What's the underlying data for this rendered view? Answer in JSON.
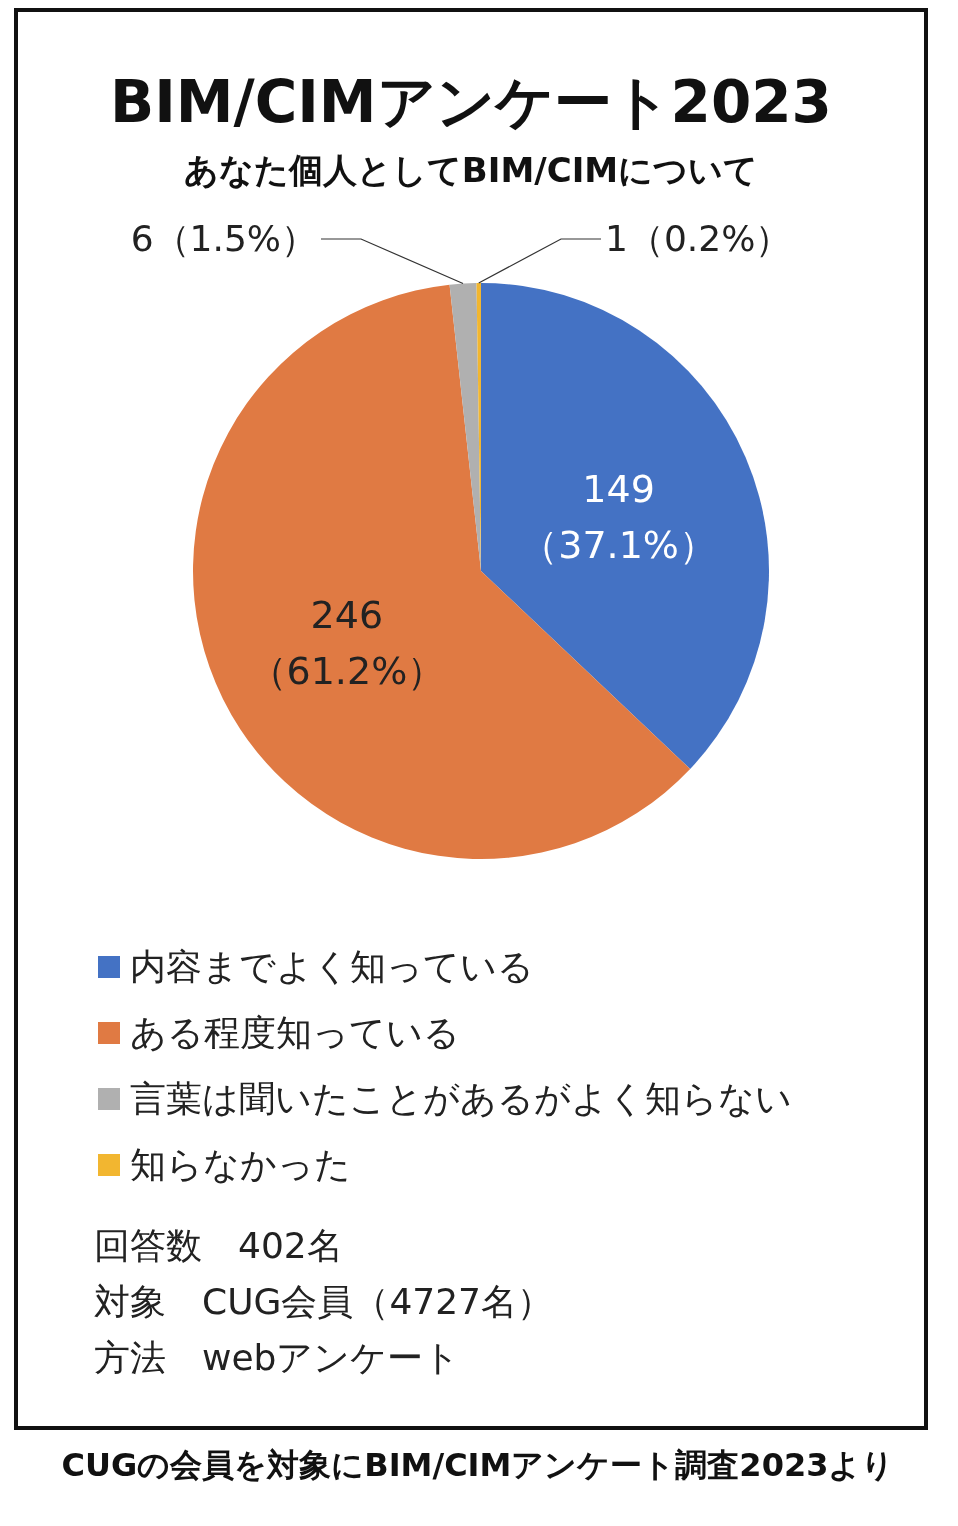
{
  "chart_data": {
    "type": "pie",
    "title": "BIM/CIMアンケート2023",
    "subtitle": "あなた個人としてBIM/CIMについて",
    "categories": [
      "内容までよく知っている",
      "ある程度知っている",
      "言葉は聞いたことがあるがよく知らない",
      "知らなかった"
    ],
    "values": [
      149,
      246,
      6,
      1
    ],
    "colors": [
      "#4472c4",
      "#e07a43",
      "#b0b0b0",
      "#f2b630"
    ],
    "value_labels": [
      "149\n（37.1%）",
      "246\n（61.2%）",
      "6（1.5%）",
      "1（0.2%）"
    ],
    "legend": "bottom",
    "annotations": [
      "回答数　402名",
      "対象　CUG会員（4727名）",
      "方法　webアンケート",
      "CUGの会員を対象にBIM/CIMアンケート調査2023より"
    ]
  }
}
